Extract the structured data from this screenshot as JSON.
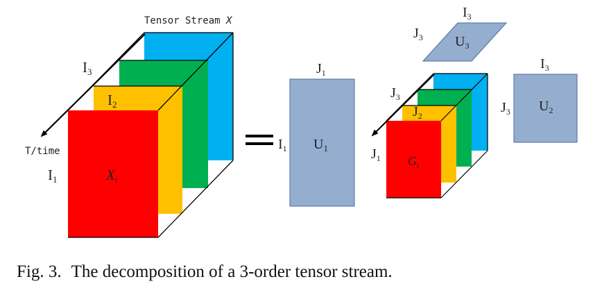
{
  "labels": {
    "stream_title": "Tensor Stream ",
    "stream_symbol": "X",
    "time_axis": "T/time",
    "i1": "I",
    "i1_sub": "1",
    "i2": "I",
    "i2_sub": "2",
    "i3": "I",
    "i3_sub": "3",
    "xt": "X",
    "xt_sub": "t",
    "equals": "=",
    "u1_i1": "I",
    "u1_i1_sub": "1",
    "u1_j1": "J",
    "u1_j1_sub": "1",
    "u1": "U",
    "u1_sub": "1",
    "core_j1": "J",
    "core_j1_sub": "1",
    "core_j2": "J",
    "core_j2_sub": "2",
    "core_j3": "J",
    "core_j3_sub": "3",
    "gt": "G",
    "gt_sub": "t",
    "u3_i3": "I",
    "u3_i3_sub": "3",
    "u3_j3": "J",
    "u3_j3_sub": "3",
    "u3": "U",
    "u3_sub": "3",
    "u2_i3": "I",
    "u2_i3_sub": "3",
    "u2_j3": "J",
    "u2_j3_sub": "3",
    "u2": "U",
    "u2_sub": "2"
  },
  "colors": {
    "red": "#ff0000",
    "orange": "#ffc000",
    "green": "#00b050",
    "blue": "#00b0f0",
    "factor": "#95aed0"
  },
  "caption": {
    "number": "Fig. 3.",
    "text": "The decomposition of a 3-order tensor stream."
  }
}
